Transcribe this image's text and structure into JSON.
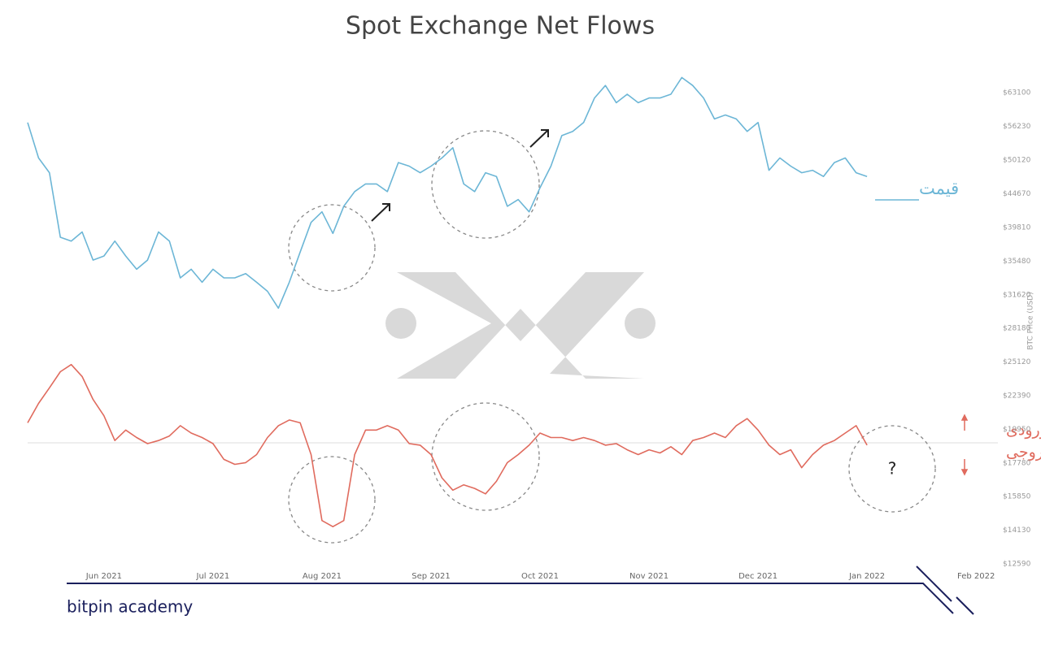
{
  "chart_data": {
    "type": "line",
    "title": "Spot Exchange Net Flows",
    "y_label": "BTC Price (USD)",
    "footer": "bitpin academy",
    "log_y": true,
    "grid": false,
    "x": [
      -0.7,
      -0.6,
      -0.5,
      -0.4,
      -0.3,
      -0.2,
      -0.1,
      0,
      0.1,
      0.2,
      0.3,
      0.4,
      0.5,
      0.6,
      0.7,
      0.8,
      0.9,
      1,
      1.1,
      1.2,
      1.3,
      1.4,
      1.5,
      1.6,
      1.7,
      1.8,
      1.9,
      2,
      2.1,
      2.2,
      2.3,
      2.4,
      2.5,
      2.6,
      2.7,
      2.8,
      2.9,
      3,
      3.1,
      3.2,
      3.3,
      3.4,
      3.5,
      3.6,
      3.7,
      3.8,
      3.9,
      4,
      4.1,
      4.2,
      4.3,
      4.4,
      4.5,
      4.6,
      4.7,
      4.8,
      4.9,
      5,
      5.1,
      5.2,
      5.3,
      5.4,
      5.5,
      5.6,
      5.7,
      5.8,
      5.9,
      6,
      6.1,
      6.2,
      6.3,
      6.4,
      6.5,
      6.6,
      6.7,
      6.8,
      6.9,
      7
    ],
    "series": [
      {
        "name": "قیمت",
        "color": "#6cb6d6",
        "values": [
          57000,
          50500,
          48000,
          38500,
          38000,
          39200,
          35600,
          36100,
          38000,
          36100,
          34500,
          35600,
          39200,
          38000,
          33500,
          34500,
          33000,
          34500,
          33500,
          33500,
          34000,
          33000,
          32000,
          30200,
          33000,
          36600,
          40500,
          42000,
          39000,
          42800,
          45000,
          46200,
          46200,
          45000,
          49700,
          49100,
          48000,
          49100,
          50500,
          52300,
          46200,
          45000,
          48000,
          47400,
          42800,
          43800,
          42000,
          45600,
          49100,
          54500,
          55300,
          57000,
          62000,
          64700,
          61000,
          62800,
          61000,
          62000,
          62000,
          62800,
          66500,
          64700,
          62000,
          57700,
          58500,
          57700,
          55300,
          57000,
          48400,
          50500,
          49100,
          48000,
          48400,
          47400,
          49700,
          50500,
          48000,
          47400
        ]
      },
      {
        "color": "#e06b5e",
        "values": [
          20400,
          21800,
          23000,
          24300,
          24900,
          23900,
          22100,
          20900,
          19200,
          19900,
          19400,
          19000,
          19200,
          19500,
          20200,
          19700,
          19400,
          19000,
          18000,
          17700,
          17800,
          18300,
          19400,
          20200,
          20600,
          20400,
          18300,
          14600,
          14300,
          14600,
          18300,
          19900,
          19900,
          20200,
          19900,
          19000,
          18900,
          18300,
          16900,
          16200,
          16500,
          16300,
          16000,
          16700,
          17800,
          18300,
          18900,
          19700,
          19400,
          19400,
          19200,
          19400,
          19200,
          18900,
          19000,
          18600,
          18300,
          18600,
          18400,
          18800,
          18300,
          19200,
          19400,
          19700,
          19400,
          20200,
          20700,
          19900,
          18900,
          18300,
          18600,
          17500,
          18300,
          18900,
          19200,
          19700,
          20200,
          18900
        ]
      }
    ],
    "xlim": [
      -0.7,
      8.2
    ],
    "xticks": [
      {
        "value": 0,
        "label": "Jun 2021"
      },
      {
        "value": 1,
        "label": "Jul 2021"
      },
      {
        "value": 2,
        "label": "Aug 2021"
      },
      {
        "value": 3,
        "label": "Sep 2021"
      },
      {
        "value": 4,
        "label": "Oct 2021"
      },
      {
        "value": 5,
        "label": "Nov 2021"
      },
      {
        "value": 6,
        "label": "Dec 2021"
      },
      {
        "value": 7,
        "label": "Jan 2022"
      },
      {
        "value": 8,
        "label": "Feb 2022"
      }
    ],
    "ylim": [
      12590,
      67500
    ],
    "yticks": [
      {
        "value": 12590,
        "label": "$12590"
      },
      {
        "value": 14130,
        "label": "$14130"
      },
      {
        "value": 15850,
        "label": "$15850"
      },
      {
        "value": 17780,
        "label": "$17780"
      },
      {
        "value": 19950,
        "label": "$19950"
      },
      {
        "value": 22390,
        "label": "$22390"
      },
      {
        "value": 25120,
        "label": "$25120"
      },
      {
        "value": 28180,
        "label": "$28180"
      },
      {
        "value": 31620,
        "label": "$31620"
      },
      {
        "value": 35480,
        "label": "$35480"
      },
      {
        "value": 39810,
        "label": "$39810"
      },
      {
        "value": 44670,
        "label": "$44670"
      },
      {
        "value": 50120,
        "label": "$50120"
      },
      {
        "value": 56230,
        "label": "$56230"
      },
      {
        "value": 63100,
        "label": "$63100"
      }
    ],
    "annotations": [
      "جریان ورودی",
      "جریان خروجی",
      "?"
    ]
  }
}
